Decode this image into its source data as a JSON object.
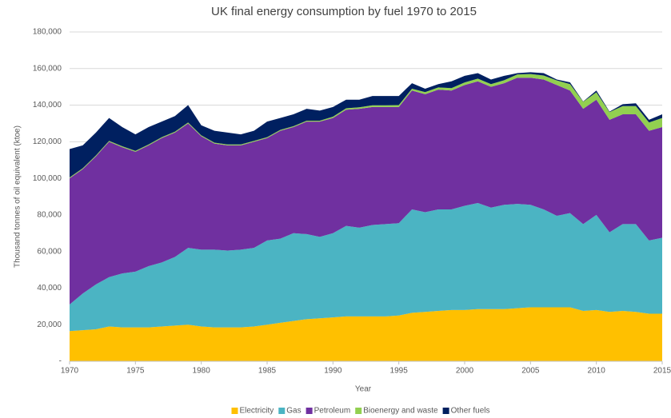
{
  "chart_data": {
    "type": "stacked_area",
    "title": "UK final energy consumption by fuel 1970 to 2015",
    "xlabel": "Year",
    "ylabel": "Thousand  tonnes of oil equivalent  (ktoe)",
    "x": [
      1970,
      1971,
      1972,
      1973,
      1974,
      1975,
      1976,
      1977,
      1978,
      1979,
      1980,
      1981,
      1982,
      1983,
      1984,
      1985,
      1986,
      1987,
      1988,
      1989,
      1990,
      1991,
      1992,
      1993,
      1994,
      1995,
      1996,
      1997,
      1998,
      1999,
      2000,
      2001,
      2002,
      2003,
      2004,
      2005,
      2006,
      2007,
      2008,
      2009,
      2010,
      2011,
      2012,
      2013,
      2014,
      2015
    ],
    "series": [
      {
        "name": "Electricity",
        "color": "#FFC000",
        "values": [
          16500,
          17000,
          17500,
          19000,
          18500,
          18500,
          18500,
          19000,
          19500,
          20000,
          19000,
          18500,
          18500,
          18500,
          19000,
          20000,
          21000,
          22000,
          23000,
          23500,
          24000,
          24500,
          24500,
          24500,
          24500,
          25000,
          26500,
          27000,
          27500,
          28000,
          28000,
          28500,
          28500,
          28500,
          29000,
          29500,
          29500,
          29500,
          29500,
          27500,
          28000,
          27000,
          27500,
          27000,
          26000,
          26000
        ]
      },
      {
        "name": "Gas",
        "color": "#4BB4C3",
        "values": [
          14500,
          20000,
          24500,
          27000,
          29500,
          30500,
          33500,
          35000,
          37500,
          42000,
          42000,
          42500,
          42000,
          42500,
          43000,
          46000,
          46000,
          48000,
          46500,
          44500,
          46000,
          49500,
          48500,
          50000,
          50500,
          50500,
          56500,
          54500,
          55500,
          55000,
          57000,
          58000,
          55500,
          57000,
          57000,
          56000,
          53500,
          50000,
          51500,
          47500,
          52000,
          43500,
          47500,
          48000,
          40000,
          41500
        ]
      },
      {
        "name": "Petroleum",
        "color": "#7030A0",
        "values": [
          69000,
          68000,
          70000,
          74000,
          69000,
          65500,
          66000,
          68000,
          68000,
          68000,
          62000,
          58000,
          57500,
          57000,
          58000,
          56000,
          59000,
          58000,
          61500,
          63000,
          63000,
          63500,
          65000,
          64500,
          64000,
          63500,
          65000,
          64500,
          65500,
          65000,
          66000,
          66500,
          66000,
          66500,
          69000,
          69500,
          71000,
          71500,
          67000,
          63000,
          63000,
          61500,
          60000,
          60000,
          60000,
          60500
        ]
      },
      {
        "name": "Bioenergy and waste",
        "color": "#92D050",
        "values": [
          500,
          500,
          500,
          500,
          500,
          500,
          500,
          500,
          500,
          500,
          500,
          500,
          500,
          500,
          500,
          500,
          500,
          500,
          500,
          500,
          700,
          800,
          800,
          900,
          900,
          1000,
          1000,
          1100,
          1200,
          1300,
          1400,
          1500,
          1500,
          1600,
          1800,
          2000,
          2200,
          2500,
          3500,
          3800,
          4000,
          4200,
          4500,
          4500,
          4500,
          5000
        ]
      },
      {
        "name": "Other fuels",
        "color": "#002060",
        "values": [
          15500,
          12500,
          12500,
          12500,
          10500,
          9000,
          9500,
          8500,
          8500,
          9500,
          5500,
          6500,
          6500,
          5500,
          5500,
          8500,
          6500,
          6500,
          6500,
          5500,
          5300,
          4700,
          4200,
          5100,
          5100,
          5000,
          3000,
          1900,
          1800,
          3700,
          3600,
          3000,
          2500,
          2400,
          700,
          1000,
          1300,
          500,
          1000,
          200,
          1000,
          300,
          1000,
          1500,
          1500,
          2000
        ]
      }
    ],
    "xlim": [
      1970,
      2015
    ],
    "xticks": [
      1970,
      1975,
      1980,
      1985,
      1990,
      1995,
      2000,
      2005,
      2010,
      2015
    ],
    "ylim": [
      0,
      180000
    ],
    "yticks": [
      {
        "value": 0,
        "label": "-"
      },
      {
        "value": 20000,
        "label": "20,000"
      },
      {
        "value": 40000,
        "label": "40,000"
      },
      {
        "value": 60000,
        "label": "60,000"
      },
      {
        "value": 80000,
        "label": "80,000"
      },
      {
        "value": 100000,
        "label": "100,000"
      },
      {
        "value": 120000,
        "label": "120,000"
      },
      {
        "value": 140000,
        "label": "140,000"
      },
      {
        "value": 160000,
        "label": "160,000"
      },
      {
        "value": 180000,
        "label": "180,000"
      }
    ],
    "grid": true,
    "legend": "bottom"
  }
}
